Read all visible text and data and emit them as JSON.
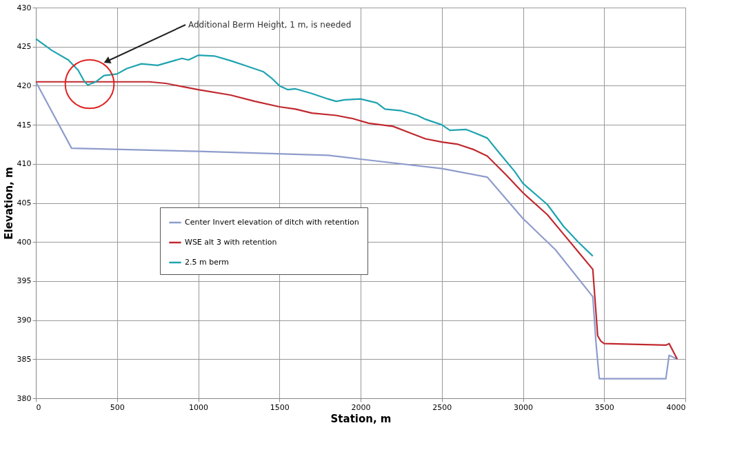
{
  "chart_data": {
    "type": "line",
    "xlabel": "Station, m",
    "ylabel": "Elevation, m",
    "xlim": [
      0,
      4000
    ],
    "xticks": [
      0,
      500,
      1000,
      1500,
      2000,
      2500,
      3000,
      3500,
      4000
    ],
    "ylim": [
      380,
      430
    ],
    "yticks": [
      380,
      385,
      390,
      395,
      400,
      405,
      410,
      415,
      420,
      425,
      430
    ],
    "grid": true,
    "legend": "left",
    "marker": "none",
    "line_style": "solid",
    "annotations": [
      "Additional Berm Height, 1 m, is needed"
    ],
    "series": [
      {
        "name": "Center Invert elevation of ditch with retention",
        "color": "#8e9ccc",
        "x": [
          0,
          220,
          1000,
          1800,
          2000,
          2500,
          2780,
          3000,
          3200,
          3430,
          3450,
          3470,
          3880,
          3900,
          3950
        ],
        "values": [
          420.5,
          412,
          411.6,
          411.1,
          410.6,
          409.4,
          408.3,
          403,
          399,
          393,
          387,
          382.5,
          382.5,
          385.5,
          385
        ]
      },
      {
        "name": "WSE alt 3 with retention",
        "color": "#c0282e",
        "x": [
          0,
          700,
          800,
          1000,
          1200,
          1350,
          1500,
          1600,
          1700,
          1850,
          1950,
          2050,
          2200,
          2300,
          2400,
          2500,
          2600,
          2700,
          2780,
          2900,
          3000,
          3150,
          3250,
          3350,
          3430,
          3460,
          3480,
          3500,
          3880,
          3900,
          3950
        ],
        "values": [
          420.5,
          420.5,
          420.3,
          419.5,
          418.8,
          418,
          417.3,
          417,
          416.5,
          416.2,
          415.8,
          415.2,
          414.8,
          414,
          413.2,
          412.8,
          412.5,
          411.8,
          411,
          408.5,
          406.3,
          403.5,
          401,
          398.5,
          396.5,
          388,
          387.3,
          387,
          386.8,
          387,
          385
        ]
      },
      {
        "name": "2.5 m berm",
        "color": "#1ea3b0",
        "x": [
          0,
          100,
          200,
          260,
          300,
          320,
          370,
          420,
          500,
          560,
          650,
          750,
          850,
          900,
          940,
          1000,
          1100,
          1200,
          1300,
          1400,
          1450,
          1500,
          1550,
          1600,
          1700,
          1800,
          1850,
          1900,
          2000,
          2100,
          2150,
          2250,
          2350,
          2400,
          2500,
          2550,
          2650,
          2700,
          2780,
          2850,
          2950,
          3000,
          3150,
          3250,
          3340,
          3430
        ],
        "values": [
          426,
          424.5,
          423.3,
          422,
          420.5,
          420.1,
          420.5,
          421.3,
          421.5,
          422.2,
          422.8,
          422.6,
          423.2,
          423.5,
          423.3,
          423.9,
          423.8,
          423.2,
          422.5,
          421.8,
          421,
          420,
          419.5,
          419.6,
          419,
          418.3,
          418,
          418.2,
          418.3,
          417.8,
          417,
          416.8,
          416.2,
          415.7,
          415,
          414.3,
          414.4,
          414,
          413.3,
          411.5,
          409,
          407.5,
          404.8,
          402,
          400,
          398.2
        ]
      }
    ]
  }
}
